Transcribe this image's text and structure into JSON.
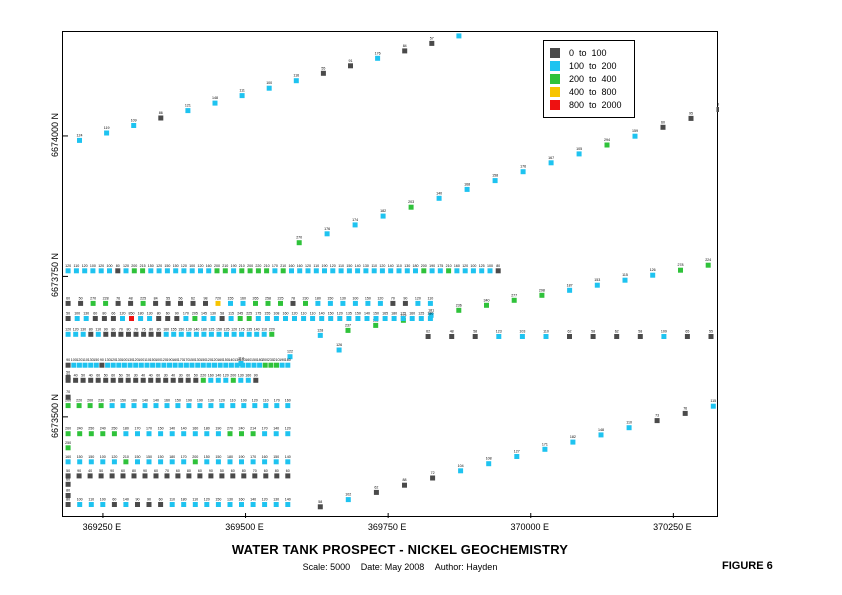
{
  "title": "WATER TANK PROSPECT - NICKEL GEOCHEMISTRY",
  "subtitle": {
    "scale": "Scale: 5000",
    "date": "Date: May 2008",
    "author": "Author: Hayden"
  },
  "figure_label": "FIGURE 6",
  "chart_data": {
    "type": "scatter",
    "title": "WATER TANK PROSPECT - NICKEL GEOCHEMISTRY",
    "x_ticks": [
      "369250 E",
      "369500 E",
      "369750 E",
      "370000 E",
      "370250 E"
    ],
    "y_ticks": [
      "6673500 N",
      "6673750 N",
      "6674000 N"
    ],
    "xlim": [
      369180,
      370330
    ],
    "ylim": [
      6673320,
      6674185
    ],
    "grid": false,
    "legend_position": "top-right",
    "legend": [
      {
        "label": "0  to  100",
        "color": "#4a4a4a"
      },
      {
        "label": "100  to  200",
        "color": "#1ec3f0"
      },
      {
        "label": "200  to  400",
        "color": "#2fc23a"
      },
      {
        "label": "400  to  800",
        "color": "#f7c400"
      },
      {
        "label": "800  to  2000",
        "color": "#ee1111"
      }
    ],
    "bins": [
      0,
      100,
      200,
      400,
      800,
      2000
    ],
    "traverses": [
      {
        "x0": 369209,
        "y0": 6673992,
        "x1": 369874,
        "y1": 6674178,
        "values": [
          124,
          119,
          109,
          86,
          121,
          148,
          111,
          100,
          116,
          55,
          91,
          176,
          84,
          57,
          121
        ]
      },
      {
        "x0": 369594,
        "y0": 6673810,
        "x1": 370330,
        "y1": 6674047,
        "values": [
          270,
          176,
          174,
          182,
          203,
          140,
          168,
          158,
          176,
          167,
          105,
          294,
          159,
          60,
          95,
          83
        ]
      },
      {
        "x0": 369631,
        "y0": 6673645,
        "x1": 370311,
        "y1": 6673770,
        "values": [
          128,
          237,
          211,
          329,
          181,
          236,
          340,
          277,
          298,
          187,
          153,
          115,
          126,
          278,
          224
        ]
      },
      {
        "x0": 369492,
        "y0": 6673595,
        "x1": 369664,
        "y1": 6673619,
        "values": [
          114,
          122,
          126
        ]
      },
      {
        "x0": 369631,
        "y0": 6673340,
        "x1": 370320,
        "y1": 6673519,
        "values": [
          58,
          102,
          62,
          88,
          72,
          104,
          108,
          127,
          171,
          182,
          148,
          110,
          73,
          76,
          115
        ]
      },
      {
        "x0": 369820,
        "y0": 6673643,
        "x1": 370316,
        "y1": 6673643,
        "values": [
          62,
          48,
          58,
          123,
          103,
          110,
          62,
          58,
          62,
          58,
          109,
          65,
          55
        ]
      },
      {
        "x0": 369189,
        "y0": 6673760,
        "x1": 369943,
        "y1": 6673760,
        "values": [
          120,
          110,
          120,
          100,
          120,
          100,
          80,
          120,
          200,
          215,
          150,
          120,
          150,
          150,
          120,
          100,
          120,
          160,
          200,
          210,
          190,
          210,
          200,
          220,
          210,
          170,
          210,
          160,
          160,
          120,
          110,
          190,
          120,
          110,
          150,
          140,
          130,
          110,
          120,
          140,
          110,
          130,
          180,
          200,
          190,
          175,
          210,
          160,
          120,
          100,
          125,
          100,
          80
        ]
      },
      {
        "x0": 369189,
        "y0": 6673702,
        "x1": 369824,
        "y1": 6673702,
        "values": [
          60,
          50,
          270,
          228,
          76,
          48,
          225,
          84,
          55,
          56,
          62,
          98,
          720,
          155,
          160,
          265,
          258,
          225,
          78,
          230,
          180,
          150,
          130,
          100,
          150,
          120,
          70,
          90,
          120,
          110
        ]
      },
      {
        "x0": 369189,
        "y0": 6673675,
        "x1": 369824,
        "y1": 6673675,
        "values": [
          50,
          100,
          130,
          60,
          80,
          66,
          120,
          850,
          180,
          130,
          80,
          60,
          90,
          170,
          205,
          145,
          130,
          58,
          115,
          245,
          225,
          175,
          155,
          108,
          160,
          120,
          110,
          110,
          140,
          150,
          120,
          135,
          150,
          140,
          150,
          165,
          180,
          175,
          160,
          125,
          180
        ]
      },
      {
        "x0": 369189,
        "y0": 6673647,
        "x1": 369546,
        "y1": 6673647,
        "values": [
          120,
          120,
          130,
          80,
          110,
          90,
          80,
          70,
          80,
          70,
          75,
          80,
          80,
          160,
          155,
          150,
          130,
          140,
          180,
          125,
          150,
          125,
          120,
          175,
          135,
          140,
          110,
          220
        ]
      },
      {
        "x0": 369189,
        "y0": 6673592,
        "x1": 369574,
        "y1": 6673592,
        "values": [
          90,
          100,
          120,
          110,
          130,
          150,
          90,
          130,
          120,
          130,
          100,
          130,
          120,
          100,
          110,
          150,
          100,
          120,
          190,
          160,
          170,
          170,
          150,
          130,
          150,
          120,
          120,
          160,
          150,
          140,
          130,
          140,
          160,
          150,
          180,
          200,
          230,
          210,
          190,
          160
        ]
      },
      {
        "x0": 369189,
        "y0": 6673565,
        "x1": 369518,
        "y1": 6673565,
        "values": [
          30,
          40,
          50,
          40,
          60,
          50,
          60,
          50,
          50,
          30,
          40,
          40,
          60,
          30,
          40,
          30,
          60,
          50,
          220,
          160,
          140,
          120,
          200,
          130,
          160,
          90
        ]
      },
      {
        "x0": 369189,
        "y0": 6673520,
        "x1": 369574,
        "y1": 6673520,
        "values": [
          200,
          220,
          200,
          230,
          190,
          150,
          160,
          140,
          140,
          160,
          150,
          190,
          190,
          130,
          120,
          110,
          100,
          120,
          110,
          170,
          160
        ]
      },
      {
        "x0": 369189,
        "y0": 6673470,
        "x1": 369574,
        "y1": 6673470,
        "values": [
          260,
          240,
          250,
          240,
          250,
          180,
          170,
          170,
          150,
          140,
          140,
          160,
          180,
          190,
          270,
          240,
          214,
          170,
          140,
          120
        ]
      },
      {
        "x0": 369189,
        "y0": 6673420,
        "x1": 369574,
        "y1": 6673420,
        "values": [
          160,
          150,
          150,
          100,
          120,
          210,
          150,
          150,
          150,
          180,
          170,
          200,
          150,
          150,
          180,
          190,
          170,
          160,
          150,
          140
        ]
      },
      {
        "x0": 369189,
        "y0": 6673395,
        "x1": 369574,
        "y1": 6673395,
        "values": [
          50,
          90,
          40,
          50,
          90,
          60,
          80,
          90,
          60,
          70,
          60,
          80,
          60,
          90,
          50,
          60,
          80,
          70,
          60,
          80,
          60
        ]
      },
      {
        "x0": 369189,
        "y0": 6673344,
        "x1": 369574,
        "y1": 6673344,
        "values": [
          80,
          100,
          110,
          100,
          60,
          140,
          90,
          90,
          60,
          110,
          180,
          110,
          120,
          150,
          130,
          160,
          140,
          120,
          130,
          140
        ]
      }
    ],
    "extra_points": [
      {
        "x": 369189,
        "y": 6673570,
        "value": 50
      },
      {
        "x": 369189,
        "y": 6673535,
        "value": 70
      },
      {
        "x": 369189,
        "y": 6673445,
        "value": 250
      },
      {
        "x": 369189,
        "y": 6673380,
        "value": 60
      },
      {
        "x": 369189,
        "y": 6673360,
        "value": 80
      }
    ]
  }
}
